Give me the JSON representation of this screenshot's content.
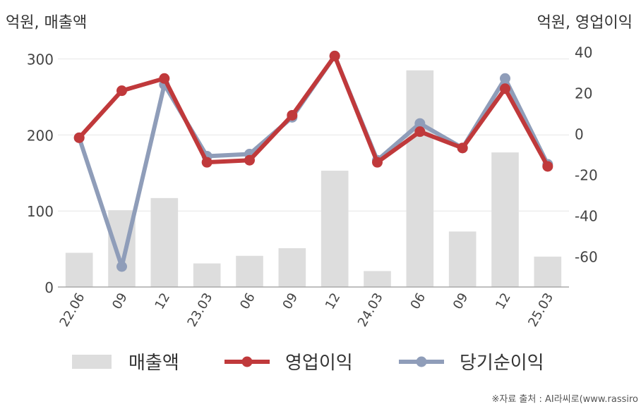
{
  "units": {
    "left": "억원, 매출액",
    "right": "억원, 영업이익"
  },
  "source": "※자료 출처 : AI라씨로(www.rassiro",
  "chart_data": {
    "type": "bar+line",
    "categories": [
      "22.06",
      "09",
      "12",
      "23.03",
      "06",
      "09",
      "12",
      "24.03",
      "06",
      "09",
      "12",
      "25.03"
    ],
    "series": [
      {
        "name": "매출액",
        "type": "bar",
        "axis": "left",
        "color": "#dddddd",
        "values": [
          45,
          101,
          117,
          31,
          41,
          51,
          153,
          21,
          285,
          73,
          177,
          40
        ]
      },
      {
        "name": "영업이익",
        "type": "line",
        "axis": "right",
        "color": "#c0393b",
        "values": [
          -2,
          21,
          27,
          -14,
          -13,
          9,
          38,
          -14,
          1,
          -7,
          22,
          -16
        ]
      },
      {
        "name": "당기순이익",
        "type": "line",
        "axis": "right",
        "color": "#8f9db9",
        "values": [
          -2,
          -65,
          24,
          -11,
          -10,
          8,
          38,
          -13,
          5,
          -7,
          27,
          -15
        ]
      }
    ],
    "left_axis": {
      "ylim": [
        0,
        320
      ],
      "ticks": [
        0,
        100,
        200,
        300
      ]
    },
    "right_axis": {
      "ylim": [
        -75,
        44
      ],
      "ticks": [
        -60,
        -40,
        -20,
        0,
        20,
        40
      ]
    },
    "grid": true,
    "legend_position": "bottom"
  }
}
